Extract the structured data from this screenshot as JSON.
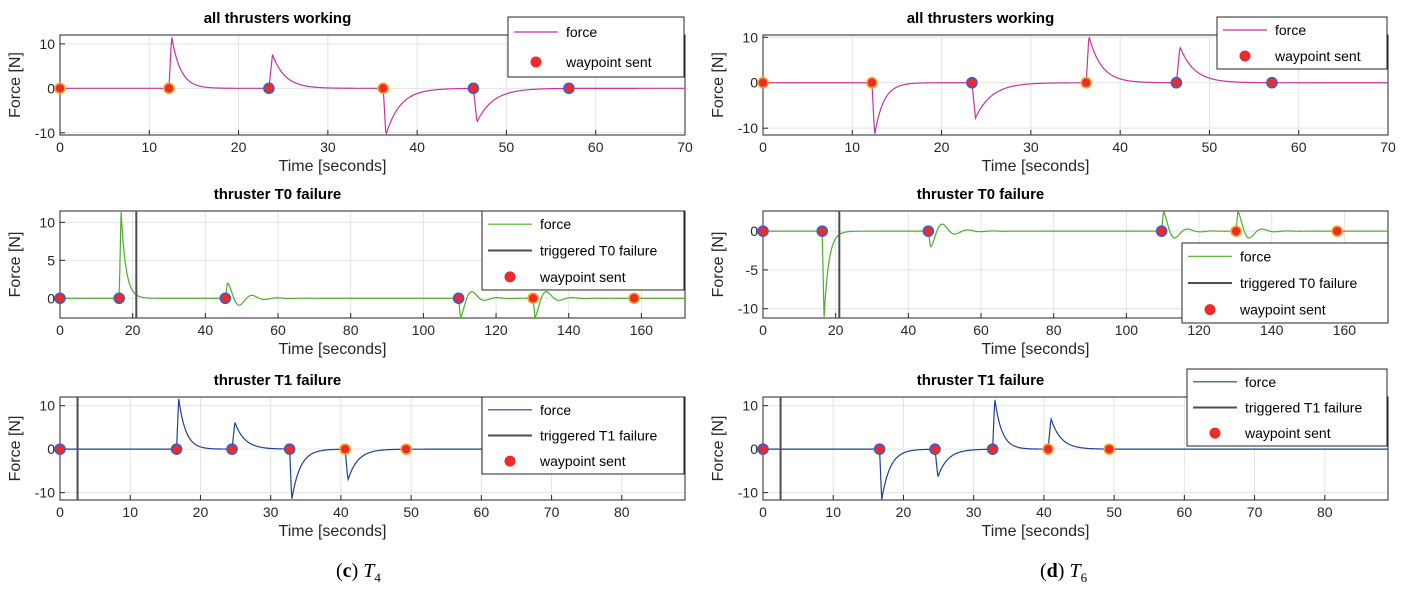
{
  "captions": [
    {
      "letter": "c",
      "symbol": "T",
      "sub": "4"
    },
    {
      "letter": "d",
      "symbol": "T",
      "sub": "6"
    }
  ],
  "colors": {
    "force_all": "#c7339f",
    "force_t0": "#4caf2a",
    "force_t1": "#1f3f9a",
    "failure_line": "#4d4d4d",
    "waypoint_fill": "#ee2a2a",
    "waypoint_edge_blue": "#3a5fcd",
    "waypoint_edge_orange": "#f5a623",
    "grid": "#e3e3e3"
  },
  "legend_labels": {
    "force": "force",
    "waypoint": "waypoint sent",
    "t0_failure": "triggered T0 failure",
    "t1_failure": "triggered T1 failure"
  },
  "chart_data": [
    {
      "type": "line",
      "panel": "c",
      "title": "all thrusters working",
      "xlabel": "Time [seconds]",
      "ylabel": "Force [N]",
      "xlim": [
        0,
        70
      ],
      "ylim": [
        -10.5,
        12
      ],
      "xticks": [
        0,
        10,
        20,
        30,
        40,
        50,
        60,
        70
      ],
      "yticks": [
        -10,
        0,
        10
      ],
      "grid": true,
      "legend_position": "top-right",
      "force_color": "force_all",
      "failure_time": null,
      "steps": [
        {
          "t": 12.2,
          "a": 11.7,
          "rise": 0.3,
          "tau": 1.0
        },
        {
          "t": 23.4,
          "a": 7.6,
          "rise": 0.4,
          "tau": 1.4
        },
        {
          "t": 36.2,
          "a": -10.5,
          "rise": 0.3,
          "tau": 1.6
        },
        {
          "t": 46.3,
          "a": -7.6,
          "rise": 0.4,
          "tau": 1.8
        }
      ],
      "waypoints": [
        {
          "t": 0,
          "edge": "orange"
        },
        {
          "t": 12.2,
          "edge": "orange"
        },
        {
          "t": 23.4,
          "edge": "blue"
        },
        {
          "t": 36.2,
          "edge": "orange"
        },
        {
          "t": 46.3,
          "edge": "blue"
        },
        {
          "t": 57.0,
          "edge": "blue"
        }
      ]
    },
    {
      "type": "line",
      "panel": "d",
      "title": "all thrusters working",
      "xlabel": "Time [seconds]",
      "ylabel": "Force [N]",
      "xlim": [
        0,
        70
      ],
      "ylim": [
        -11.5,
        10.5
      ],
      "xticks": [
        0,
        10,
        20,
        30,
        40,
        50,
        60,
        70
      ],
      "yticks": [
        -10,
        0,
        10
      ],
      "grid": true,
      "legend_position": "top-right",
      "force_color": "force_all",
      "failure_time": null,
      "steps": [
        {
          "t": 12.2,
          "a": -11.5,
          "rise": 0.3,
          "tau": 1.0
        },
        {
          "t": 23.4,
          "a": -7.8,
          "rise": 0.4,
          "tau": 1.8
        },
        {
          "t": 36.2,
          "a": 10.3,
          "rise": 0.3,
          "tau": 1.4
        },
        {
          "t": 46.3,
          "a": 7.9,
          "rise": 0.4,
          "tau": 1.6
        }
      ],
      "waypoints": [
        {
          "t": 0,
          "edge": "orange"
        },
        {
          "t": 12.2,
          "edge": "orange"
        },
        {
          "t": 23.4,
          "edge": "blue"
        },
        {
          "t": 36.2,
          "edge": "orange"
        },
        {
          "t": 46.3,
          "edge": "blue"
        },
        {
          "t": 57.0,
          "edge": "blue"
        }
      ]
    },
    {
      "type": "line",
      "panel": "c",
      "title": "thruster T0 failure",
      "xlabel": "Time [seconds]",
      "ylabel": "Force [N]",
      "xlim": [
        0,
        172
      ],
      "ylim": [
        -2.6,
        11.5
      ],
      "xticks": [
        0,
        20,
        40,
        60,
        80,
        100,
        120,
        140,
        160
      ],
      "yticks": [
        0,
        5,
        10
      ],
      "grid": true,
      "legend_position": "top-right",
      "force_color": "force_t0",
      "failure_time": 21.0,
      "failure_label_key": "t0_failure",
      "steps": [
        {
          "t": 16.3,
          "a": 11.5,
          "rise": 0.5,
          "tau": 1.3
        },
        {
          "t": 45.5,
          "a": 2.1,
          "rise": 0.6,
          "tau": 4.0,
          "ring": true
        },
        {
          "t": 109.7,
          "a": -2.6,
          "rise": 0.5,
          "tau": 3.0,
          "ring": true
        },
        {
          "t": 130.2,
          "a": -2.6,
          "rise": 0.5,
          "tau": 3.0,
          "ring": true
        }
      ],
      "waypoints": [
        {
          "t": 0,
          "edge": "blue"
        },
        {
          "t": 16.3,
          "edge": "blue"
        },
        {
          "t": 45.5,
          "edge": "blue"
        },
        {
          "t": 109.7,
          "edge": "blue"
        },
        {
          "t": 130.2,
          "edge": "orange"
        },
        {
          "t": 158.0,
          "edge": "orange"
        }
      ]
    },
    {
      "type": "line",
      "panel": "d",
      "title": "thruster T0 failure",
      "xlabel": "Time [seconds]",
      "ylabel": "Force [N]",
      "xlim": [
        0,
        172
      ],
      "ylim": [
        -11.2,
        2.6
      ],
      "xticks": [
        0,
        20,
        40,
        60,
        80,
        100,
        120,
        140,
        160
      ],
      "yticks": [
        -10,
        -5,
        0
      ],
      "grid": true,
      "legend_position": "top-right",
      "force_color": "force_t0",
      "failure_time": 21.0,
      "failure_label_key": "t0_failure",
      "steps": [
        {
          "t": 16.3,
          "a": -11.2,
          "rise": 0.5,
          "tau": 1.3
        },
        {
          "t": 45.5,
          "a": -2.1,
          "rise": 0.6,
          "tau": 4.0,
          "ring": true
        },
        {
          "t": 109.7,
          "a": 2.6,
          "rise": 0.5,
          "tau": 3.0,
          "ring": true
        },
        {
          "t": 130.2,
          "a": 2.6,
          "rise": 0.5,
          "tau": 3.0,
          "ring": true
        }
      ],
      "waypoints": [
        {
          "t": 0,
          "edge": "blue"
        },
        {
          "t": 16.3,
          "edge": "blue"
        },
        {
          "t": 45.5,
          "edge": "blue"
        },
        {
          "t": 109.7,
          "edge": "blue"
        },
        {
          "t": 130.2,
          "edge": "orange"
        },
        {
          "t": 158.0,
          "edge": "orange"
        }
      ]
    },
    {
      "type": "line",
      "panel": "c",
      "title": "thruster T1 failure",
      "xlabel": "Time [seconds]",
      "ylabel": "Force [N]",
      "xlim": [
        0,
        89
      ],
      "ylim": [
        -11.7,
        12
      ],
      "xticks": [
        0,
        10,
        20,
        30,
        40,
        50,
        60,
        70,
        80
      ],
      "yticks": [
        -10,
        0,
        10
      ],
      "grid": true,
      "legend_position": "top-right",
      "force_color": "force_t1",
      "failure_time": 2.5,
      "failure_label_key": "t1_failure",
      "steps": [
        {
          "t": 16.6,
          "a": 11.7,
          "rise": 0.3,
          "tau": 1.0
        },
        {
          "t": 24.5,
          "a": 6.2,
          "rise": 0.4,
          "tau": 1.4
        },
        {
          "t": 32.7,
          "a": -11.7,
          "rise": 0.3,
          "tau": 1.2
        },
        {
          "t": 40.6,
          "a": -7.1,
          "rise": 0.4,
          "tau": 1.4
        }
      ],
      "waypoints": [
        {
          "t": 0,
          "edge": "blue"
        },
        {
          "t": 16.6,
          "edge": "blue"
        },
        {
          "t": 24.5,
          "edge": "blue"
        },
        {
          "t": 32.7,
          "edge": "blue"
        },
        {
          "t": 40.6,
          "edge": "orange"
        },
        {
          "t": 49.3,
          "edge": "orange"
        }
      ]
    },
    {
      "type": "line",
      "panel": "d",
      "title": "thruster T1 failure",
      "xlabel": "Time [seconds]",
      "ylabel": "Force [N]",
      "xlim": [
        0,
        89
      ],
      "ylim": [
        -11.7,
        12
      ],
      "xticks": [
        0,
        10,
        20,
        30,
        40,
        50,
        60,
        70,
        80
      ],
      "yticks": [
        -10,
        0,
        10
      ],
      "grid": true,
      "legend_position": "top-right",
      "force_color": "force_t1",
      "failure_time": 2.5,
      "failure_label_key": "t1_failure",
      "steps": [
        {
          "t": 16.6,
          "a": -11.7,
          "rise": 0.3,
          "tau": 1.2
        },
        {
          "t": 24.5,
          "a": -6.4,
          "rise": 0.4,
          "tau": 1.4
        },
        {
          "t": 32.7,
          "a": 11.7,
          "rise": 0.3,
          "tau": 1.0
        },
        {
          "t": 40.6,
          "a": 7.1,
          "rise": 0.4,
          "tau": 1.4
        }
      ],
      "waypoints": [
        {
          "t": 0,
          "edge": "blue"
        },
        {
          "t": 16.6,
          "edge": "blue"
        },
        {
          "t": 24.5,
          "edge": "blue"
        },
        {
          "t": 32.7,
          "edge": "blue"
        },
        {
          "t": 40.6,
          "edge": "orange"
        },
        {
          "t": 49.3,
          "edge": "orange"
        }
      ]
    }
  ]
}
